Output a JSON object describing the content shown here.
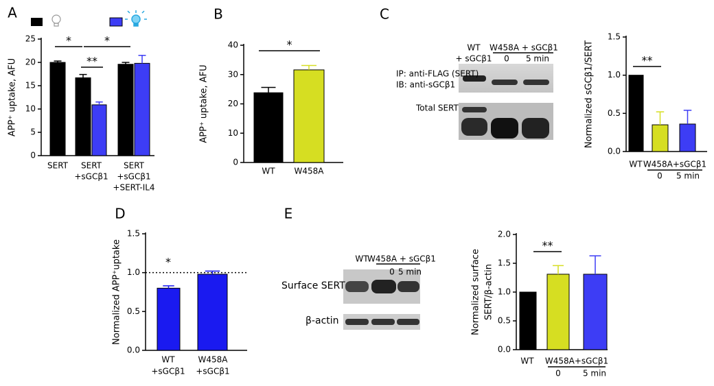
{
  "chart_data": [
    {
      "type": "bar",
      "panel_label": "A",
      "ylabel": "APP⁺ uptake, AFU",
      "categories": [
        [
          "SERT"
        ],
        [
          "SERT",
          "+sGCβ1"
        ],
        [
          "SERT",
          "+sGCβ1",
          "+SERT-IL4"
        ]
      ],
      "series": [
        {
          "color": "#000000",
          "values": [
            20.0,
            16.7,
            19.6
          ],
          "errors": [
            0.3,
            0.7,
            0.4
          ]
        },
        {
          "color": "#3d3df5",
          "values": [
            null,
            10.9,
            19.8
          ],
          "errors": [
            null,
            0.6,
            1.7
          ]
        }
      ],
      "ylim": [
        0,
        25
      ],
      "yticks": [
        0,
        5,
        10,
        15,
        20,
        25
      ],
      "annotations": [
        "*",
        "*",
        "**"
      ]
    },
    {
      "type": "bar",
      "panel_label": "B",
      "ylabel": "APP⁺ uptake, AFU",
      "categories": [
        [
          "WT"
        ],
        [
          "W458A"
        ]
      ],
      "series": [
        {
          "colors": [
            "#000000",
            "#d6de22"
          ],
          "values": [
            23.8,
            31.6
          ],
          "errors": [
            1.8,
            1.5
          ]
        }
      ],
      "ylim": [
        0,
        40
      ],
      "yticks": [
        0,
        10,
        20,
        30,
        40
      ],
      "annotations": [
        "*"
      ]
    },
    {
      "type": "bar",
      "ylabel": "Normalized sGCβ1/SERT",
      "categories": [
        [
          "WT"
        ],
        [
          "0"
        ],
        [
          "5 min"
        ]
      ],
      "group_label": "W458A+sGCβ1",
      "series": [
        {
          "colors": [
            "#000000",
            "#d6de22",
            "#3d3df5"
          ],
          "values": [
            1.0,
            0.35,
            0.36
          ],
          "errors": [
            0,
            0.17,
            0.18
          ]
        }
      ],
      "ylim": [
        0,
        1.5
      ],
      "yticks": [
        {
          "value": 0,
          "label": "0.0"
        },
        0.5,
        {
          "value": 1,
          "label": "1.0"
        },
        1.5
      ],
      "annotations": [
        "**"
      ]
    },
    {
      "type": "bar",
      "panel_label": "D",
      "ylabel": "Normalized APP⁺uptake",
      "categories": [
        [
          "WT",
          "+sGCβ1"
        ],
        [
          "W458A",
          "+sGCβ1"
        ]
      ],
      "series": [
        {
          "color": "#1a1af0",
          "values": [
            0.8,
            0.98
          ],
          "errors": [
            0.03,
            0.04
          ]
        }
      ],
      "ylim": [
        0,
        1.5
      ],
      "yticks": [
        {
          "value": 0,
          "label": "0.0"
        },
        0.5,
        {
          "value": 1,
          "label": "1.0"
        },
        1.5
      ],
      "reference_line": 1,
      "annotations": [
        "*"
      ]
    },
    {
      "type": "bar",
      "ylabel": [
        "Normalized surface",
        "SERT/β-actin"
      ],
      "categories": [
        [
          "WT"
        ],
        [
          "0"
        ],
        [
          "5 min"
        ]
      ],
      "group_label": "W458A+sGCβ1",
      "series": [
        {
          "colors": [
            "#000000",
            "#d6de22",
            "#3d3df5"
          ],
          "values": [
            1.0,
            1.31,
            1.31
          ],
          "errors": [
            0,
            0.15,
            0.32
          ]
        }
      ],
      "ylim": [
        0,
        2
      ],
      "yticks": [
        {
          "value": 0,
          "label": "0.0"
        },
        0.5,
        {
          "value": 1,
          "label": "1.0"
        },
        1.5,
        {
          "value": 2,
          "label": "2.0"
        }
      ],
      "annotations": [
        "**"
      ]
    }
  ],
  "blots": [
    {
      "panel_label": "C",
      "lane": [
        "WT",
        "+ sGCβ1"
      ],
      "group": "W458A + sGCβ1",
      "sublanes": [
        "0",
        "5 min"
      ],
      "rows": [
        "IP: anti-FLAG (SERT)",
        "IB: anti-sGCβ1",
        "Total SERT"
      ]
    },
    {
      "panel_label": "E",
      "lane": [
        "WT"
      ],
      "group": "W458A + sGCβ1",
      "sublanes": [
        "0",
        "5 min"
      ],
      "rows": [
        "Surface SERT",
        "β-actin"
      ]
    }
  ]
}
